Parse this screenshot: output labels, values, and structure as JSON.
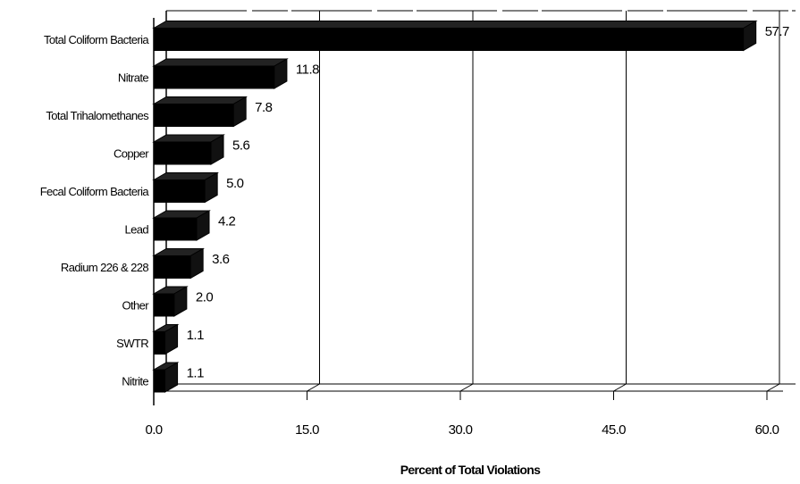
{
  "chart_data": {
    "type": "bar",
    "orientation": "horizontal",
    "categories": [
      "Total Coliform Bacteria",
      "Nitrate",
      "Total Trihalomethanes",
      "Copper",
      "Fecal Coliform Bacteria",
      "Lead",
      "Radium 226 & 228",
      "Other",
      "SWTR",
      "Nitrite"
    ],
    "values": [
      57.7,
      11.8,
      7.8,
      5.6,
      5.0,
      4.2,
      3.6,
      2.0,
      1.1,
      1.1
    ],
    "value_labels": [
      "57.7",
      "11.8",
      "7.8",
      "5.6",
      "5.0",
      "4.2",
      "3.6",
      "2.0",
      "1.1",
      "1.1"
    ],
    "x_ticks": [
      "0.0",
      "15.0",
      "30.0",
      "45.0",
      "60.0"
    ],
    "xlim": [
      0,
      60
    ],
    "xlabel": "Percent of Total Violations",
    "ylabel": "",
    "title": "",
    "grid": "vertical",
    "legend": "none",
    "bar_color": "#000000"
  }
}
